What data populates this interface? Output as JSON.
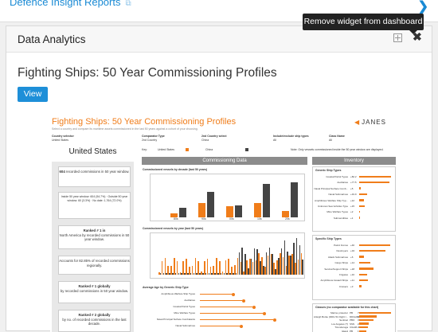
{
  "top": {
    "link_label": "Defence Insight Reports",
    "external_glyph": "⧉",
    "chevron": "❯"
  },
  "tooltip": {
    "text": "Remove widget from dashboard"
  },
  "widget": {
    "title": "Data Analytics",
    "expand_icon": "expand-icon",
    "close_glyph": "✖",
    "report_title": "Fighting Ships: 50 Year Commissioning Profiles",
    "view_label": "View"
  },
  "thumbnail": {
    "title": "Fighting Ships: 50 Year Commissioning Profiles",
    "subtitle": "Select a country and compare its maritime assets commissioned in the last 50 years against a cohort of your choosing.",
    "logo": "JANES",
    "logo_mark": "◀",
    "selectors": [
      {
        "label": "Country selector",
        "value": "United States"
      },
      {
        "label": "Comparator Type",
        "value": "2nd Country"
      },
      {
        "label": "2nd Country select",
        "value": "China"
      },
      {
        "label": "Include/exclude ship types",
        "value": "All"
      },
      {
        "label": "Class Name",
        "value": "All"
      }
    ],
    "country": "United States",
    "key_label": "Key:",
    "key_items": [
      "United States",
      "China"
    ],
    "note": "Note: Only vessels commissioned inside the 50 year window are displayed.",
    "panel_commissioning": "Commissioning Data",
    "panel_inventory": "Inventory",
    "left_boxes": [
      {
        "bold": "604",
        "text": "recorded commissions in 50 year window."
      },
      {
        "bold": "",
        "text": "Inside 50 year window: 604 (54.7%) · Outside 50 year window: 60 (3.3%) · No date: 1,764 (72.0%)"
      },
      {
        "bold": "Ranked # 1 in",
        "text": "North America by recorded commissions in 50 year window."
      },
      {
        "bold": "82.85%",
        "text": "Accounts for 82.85% of recorded commissions regionally."
      },
      {
        "bold": "Ranked # 1 globally",
        "text": "by recorded commissions in 50 year window."
      },
      {
        "bold": "Ranked # 2 globally",
        "text": "by no. of recorded commissions in the last decade."
      }
    ],
    "sections": {
      "by_decade": "Commissioned vessels by decade (last 50 years)",
      "by_year": "Commissioned vessels by year (last 50 years)",
      "avg_age": "Average Age by Generic Ship Type",
      "generic_types": "Generic Ship Types",
      "specific_types": "Specific Ship Types",
      "classes": "Classes (no comparator available for this chart)"
    },
    "decade_labels": [
      "80s",
      "90s",
      "00s",
      "10s",
      "20s"
    ],
    "decade_values": [
      {
        "us": 5,
        "cn": 12
      },
      {
        "us": 18,
        "cn": 32
      },
      {
        "us": 14,
        "cn": 15
      },
      {
        "us": 18,
        "cn": 42
      },
      {
        "us": 8,
        "cn": 44
      }
    ],
    "generic_types": [
      {
        "name": "Coastal Patrol Types",
        "value": 82.2
      },
      {
        "name": "Auxiliaries",
        "value": 77.5
      },
      {
        "name": "Naval Principal Surface Comb...",
        "value": 5.0
      },
      {
        "name": "Naval Submarines",
        "value": 19.9
      },
      {
        "name": "Amphibious Warfare Ship Typ...",
        "value": 12.0
      },
      {
        "name": "Unknown Sea Vehicles Type",
        "value": 15.0
      },
      {
        "name": "Mine Warfare Types",
        "value": 2.0
      },
      {
        "name": "Submersibles",
        "value": 1.0
      }
    ],
    "specific_types": [
      {
        "name": "Patrol Forces",
        "value": 40.0
      },
      {
        "name": "Destroyers",
        "value": 34.0
      },
      {
        "name": "Attack Submarines",
        "value": 6.0
      },
      {
        "name": "Cargo Ships",
        "value": 14.0
      },
      {
        "name": "Service/Support Ships",
        "value": 18.0
      },
      {
        "name": "Frigates",
        "value": 10.0
      },
      {
        "name": "Amphibious Assault Ships",
        "value": 11.0
      },
      {
        "name": "Cruisers",
        "value": 3.0
      }
    ],
    "classes": [
      {
        "name": "Marine protector",
        "code": "PB",
        "value": 73
      },
      {
        "name": "Arleigh Burke (DDG 51 Flight I...",
        "code": "DDGHM",
        "value": 40
      },
      {
        "name": "Sentinel",
        "code": "PBO",
        "value": 33
      },
      {
        "name": "Los Angeles (?)",
        "code": "SSN",
        "value": 22
      },
      {
        "name": "Ticonderoga",
        "code": "CGHM",
        "value": 20
      },
      {
        "name": "Island",
        "code": "PB",
        "value": 17
      }
    ],
    "avg_age_types": [
      "Amphibious Warfare Ship Types",
      "Auxiliaries",
      "Coastal Patrol Types",
      "Mine Warfare Types",
      "Naval Principal Surface Combatants",
      "Naval Submarines"
    ],
    "colors": {
      "us": "#f07d1a",
      "cn": "#444444",
      "panel": "#8c8c8c"
    }
  }
}
